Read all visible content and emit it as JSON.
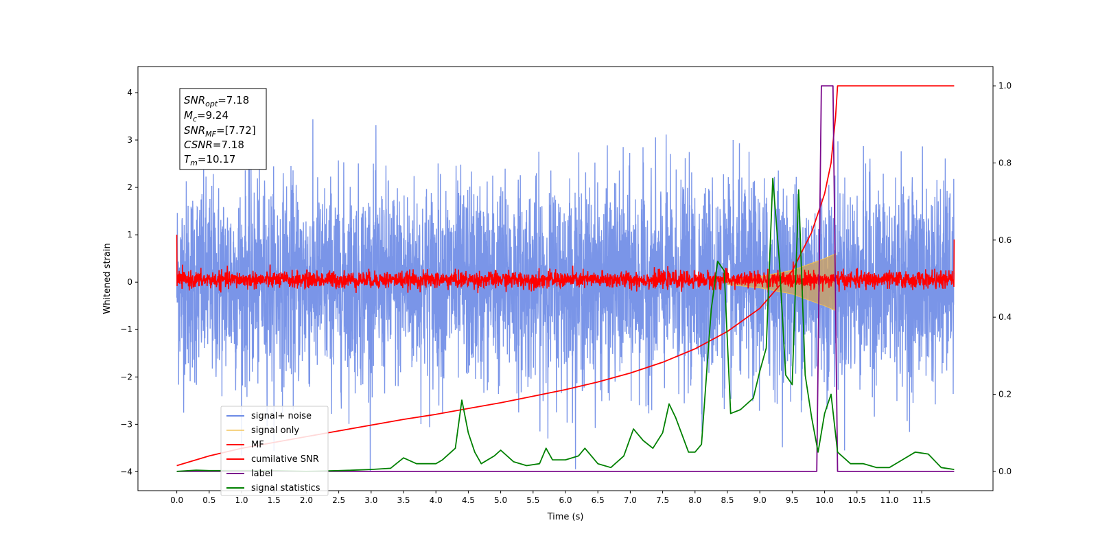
{
  "chart_data": {
    "type": "line",
    "xlabel": "Time (s)",
    "ylabel": "Whitened strain",
    "xlim": [
      -0.6,
      12.6
    ],
    "ylim_left": [
      -4.4,
      4.55
    ],
    "ylim_right": [
      -0.05,
      1.05
    ],
    "x_ticks": [
      "0.0",
      "0.5",
      "1.0",
      "1.5",
      "2.0",
      "2.5",
      "3.0",
      "3.5",
      "4.0",
      "4.5",
      "5.0",
      "5.5",
      "6.0",
      "6.5",
      "7.0",
      "7.5",
      "8.0",
      "8.5",
      "9.0",
      "9.5",
      "10.0",
      "10.5",
      "11.0",
      "11.5"
    ],
    "y_ticks_left": [
      "4",
      "3",
      "2",
      "1",
      "0",
      "−1",
      "−2",
      "−3",
      "−4"
    ],
    "y_ticks_right": [
      "1.0",
      "0.8",
      "0.6",
      "0.4",
      "0.2",
      "0.0"
    ],
    "grid": false,
    "legend_position": "lower-left",
    "annotation": {
      "snr_opt": "7.18",
      "mc": "9.24",
      "snr_mf": "[7.72]",
      "csnr": "7.18",
      "tm": "10.17"
    },
    "series": [
      {
        "name": "signal+ noise",
        "axis": "left",
        "color": "#6b8ae6",
        "description_values": {
          "x_range": [
            0.0,
            12.0
          ],
          "y_typical_range": [
            -2.5,
            2.5
          ],
          "y_extremes": [
            -4.0,
            4.15
          ]
        }
      },
      {
        "name": "signal only",
        "axis": "left",
        "color": "#f2c14e",
        "description_values": {
          "chirp_envelope": [
            [
              8.5,
              0.05
            ],
            [
              9.0,
              0.12
            ],
            [
              9.5,
              0.25
            ],
            [
              9.8,
              0.4
            ],
            [
              10.0,
              0.5
            ],
            [
              10.17,
              0.6
            ]
          ]
        }
      },
      {
        "name": "MF",
        "axis": "left",
        "color": "#ff0000",
        "description_values": {
          "x_range": [
            0.0,
            12.0
          ],
          "y_typical_range": [
            -0.2,
            0.3
          ],
          "y_edges": [
            1.0,
            0.9
          ]
        }
      },
      {
        "name": "cumilative SNR",
        "axis": "right",
        "color": "#ff0000",
        "points": [
          [
            0.0,
            0.015
          ],
          [
            0.5,
            0.04
          ],
          [
            1.0,
            0.06
          ],
          [
            1.5,
            0.075
          ],
          [
            2.0,
            0.09
          ],
          [
            2.5,
            0.105
          ],
          [
            3.0,
            0.12
          ],
          [
            3.5,
            0.135
          ],
          [
            4.0,
            0.148
          ],
          [
            4.5,
            0.163
          ],
          [
            5.0,
            0.178
          ],
          [
            5.5,
            0.195
          ],
          [
            6.0,
            0.212
          ],
          [
            6.5,
            0.232
          ],
          [
            7.0,
            0.255
          ],
          [
            7.5,
            0.283
          ],
          [
            8.0,
            0.318
          ],
          [
            8.5,
            0.363
          ],
          [
            9.0,
            0.423
          ],
          [
            9.5,
            0.52
          ],
          [
            9.8,
            0.62
          ],
          [
            10.0,
            0.72
          ],
          [
            10.1,
            0.8
          ],
          [
            10.17,
            0.92
          ],
          [
            10.2,
            1.0
          ],
          [
            12.0,
            1.0
          ]
        ]
      },
      {
        "name": "label",
        "axis": "right",
        "color": "#7b0a8c",
        "points": [
          [
            0.0,
            0.0
          ],
          [
            9.88,
            0.0
          ],
          [
            9.95,
            1.0
          ],
          [
            10.13,
            1.0
          ],
          [
            10.2,
            0.0
          ],
          [
            12.0,
            0.0
          ]
        ]
      },
      {
        "name": "signal statistics",
        "axis": "right",
        "color": "#008000",
        "points": [
          [
            0.0,
            0.0
          ],
          [
            0.3,
            0.003
          ],
          [
            0.5,
            0.002
          ],
          [
            1.0,
            0.002
          ],
          [
            1.5,
            0.002
          ],
          [
            2.0,
            0.0
          ],
          [
            2.5,
            0.002
          ],
          [
            2.7,
            0.003
          ],
          [
            3.0,
            0.005
          ],
          [
            3.3,
            0.008
          ],
          [
            3.5,
            0.035
          ],
          [
            3.7,
            0.02
          ],
          [
            4.0,
            0.02
          ],
          [
            4.1,
            0.03
          ],
          [
            4.3,
            0.06
          ],
          [
            4.4,
            0.185
          ],
          [
            4.5,
            0.1
          ],
          [
            4.6,
            0.05
          ],
          [
            4.7,
            0.02
          ],
          [
            4.9,
            0.04
          ],
          [
            5.0,
            0.055
          ],
          [
            5.2,
            0.025
          ],
          [
            5.4,
            0.015
          ],
          [
            5.6,
            0.02
          ],
          [
            5.7,
            0.06
          ],
          [
            5.8,
            0.03
          ],
          [
            6.0,
            0.03
          ],
          [
            6.2,
            0.04
          ],
          [
            6.3,
            0.06
          ],
          [
            6.5,
            0.02
          ],
          [
            6.7,
            0.01
          ],
          [
            6.9,
            0.04
          ],
          [
            7.05,
            0.11
          ],
          [
            7.2,
            0.08
          ],
          [
            7.35,
            0.06
          ],
          [
            7.5,
            0.1
          ],
          [
            7.6,
            0.175
          ],
          [
            7.7,
            0.14
          ],
          [
            7.9,
            0.05
          ],
          [
            8.0,
            0.05
          ],
          [
            8.1,
            0.07
          ],
          [
            8.25,
            0.42
          ],
          [
            8.35,
            0.545
          ],
          [
            8.45,
            0.52
          ],
          [
            8.55,
            0.15
          ],
          [
            8.7,
            0.16
          ],
          [
            8.9,
            0.19
          ],
          [
            9.0,
            0.26
          ],
          [
            9.1,
            0.32
          ],
          [
            9.2,
            0.76
          ],
          [
            9.3,
            0.55
          ],
          [
            9.4,
            0.25
          ],
          [
            9.5,
            0.225
          ],
          [
            9.6,
            0.73
          ],
          [
            9.7,
            0.25
          ],
          [
            9.8,
            0.14
          ],
          [
            9.9,
            0.05
          ],
          [
            10.0,
            0.15
          ],
          [
            10.1,
            0.2
          ],
          [
            10.2,
            0.05
          ],
          [
            10.4,
            0.02
          ],
          [
            10.6,
            0.02
          ],
          [
            10.8,
            0.01
          ],
          [
            11.0,
            0.01
          ],
          [
            11.2,
            0.03
          ],
          [
            11.4,
            0.05
          ],
          [
            11.6,
            0.045
          ],
          [
            11.8,
            0.01
          ],
          [
            12.0,
            0.005
          ]
        ]
      }
    ]
  }
}
